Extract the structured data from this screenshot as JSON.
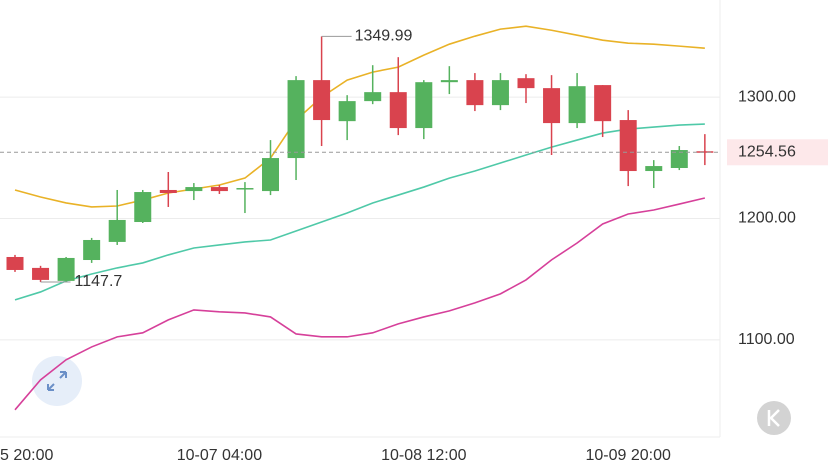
{
  "chart_data": {
    "type": "candlestick",
    "categories": [
      "5 20:00",
      null,
      null,
      null,
      null,
      null,
      null,
      null,
      "10-07 04:00",
      null,
      null,
      null,
      null,
      null,
      null,
      null,
      "10-08 12:00",
      null,
      null,
      null,
      null,
      null,
      null,
      null,
      "10-09 20:00",
      null,
      null,
      null
    ],
    "open": [
      1168.3,
      1159.3,
      1148.6,
      1165.8,
      1180.7,
      1197.1,
      1223.5,
      1222.6,
      1225.9,
      1224.3,
      1222.6,
      1249.8,
      1314,
      1280.2,
      1296.7,
      1304.1,
      1274.5,
      1312.3,
      1314,
      1293.4,
      1315.6,
      1307.4,
      1278.6,
      1309.9,
      1281.1,
      1239.1,
      1241.6,
      1255.4
    ],
    "high": [
      1170,
      1161,
      1168.3,
      1184,
      1223.5,
      1223.5,
      1238.3,
      1229.2,
      1227.6,
      1230,
      1264.6,
      1317.3,
      1349.99,
      1301.6,
      1326.3,
      1332.9,
      1314,
      1325.5,
      1319.8,
      1319.8,
      1318.9,
      1318.1,
      1319.8,
      1309.9,
      1289.3,
      1248.1,
      1259.7,
      1269.5
    ],
    "low": [
      1156,
      1147.7,
      1147.84,
      1163.4,
      1178.2,
      1196.3,
      1209.5,
      1215.2,
      1220.2,
      1204.5,
      1219.3,
      1231.7,
      1259.7,
      1264.6,
      1294.2,
      1268.7,
      1265.4,
      1302.5,
      1288.5,
      1289.3,
      1295.1,
      1252.3,
      1274.5,
      1267.1,
      1226.7,
      1225.1,
      1239.9,
      1244
    ],
    "close": [
      1157.6,
      1149.4,
      1167.5,
      1182.3,
      1198.8,
      1221.8,
      1221,
      1225.9,
      1222.6,
      1225.1,
      1249.8,
      1314,
      1281.1,
      1296.7,
      1304.1,
      1274.5,
      1312.3,
      1314,
      1293.4,
      1314,
      1307.4,
      1278.6,
      1309,
      1280.2,
      1239.1,
      1243.2,
      1256.4,
      1254.56
    ],
    "up_color": "#55b25e",
    "down_color": "#d9434e",
    "overlays": [
      {
        "color": "#e9b227",
        "values": [
          1223.5,
          1217.7,
          1212.8,
          1209.5,
          1210.3,
          1215.2,
          1221,
          1224.3,
          1227.6,
          1233.3,
          1249.8,
          1281.1,
          1300,
          1314,
          1320.6,
          1324.7,
          1334.6,
          1343.6,
          1350.2,
          1356,
          1358.4,
          1355.1,
          1351,
          1346.9,
          1344.4,
          1343.6,
          1342,
          1340.3
        ]
      },
      {
        "color": "#4fc9a8",
        "values": [
          1133,
          1139.5,
          1148.6,
          1154.3,
          1159.3,
          1163.4,
          1170,
          1175.7,
          1178.2,
          1180.7,
          1182.3,
          1189.7,
          1197.1,
          1204.5,
          1212.8,
          1219.3,
          1225.9,
          1233.3,
          1239.1,
          1245.7,
          1252.3,
          1258.8,
          1264.6,
          1270.4,
          1273.7,
          1275.3,
          1277,
          1277.8
        ]
      },
      {
        "color": "#d6409a",
        "values": [
          1042.4,
          1067.1,
          1083.6,
          1094.2,
          1102.5,
          1105.8,
          1116.5,
          1124.7,
          1123.1,
          1122.2,
          1118.9,
          1104.9,
          1102.5,
          1102.5,
          1105.8,
          1113.2,
          1118.9,
          1123.9,
          1130.5,
          1137.9,
          1149.4,
          1165.9,
          1179.8,
          1195.5,
          1203.7,
          1207,
          1211.9,
          1216.9
        ]
      }
    ],
    "ylim": [
      1020,
      1380
    ],
    "yticks": [
      {
        "value": 1100,
        "label": "1100.00"
      },
      {
        "value": 1200,
        "label": "1200.00"
      },
      {
        "value": 1300,
        "label": "1300.00"
      }
    ],
    "grid": true
  }
}
